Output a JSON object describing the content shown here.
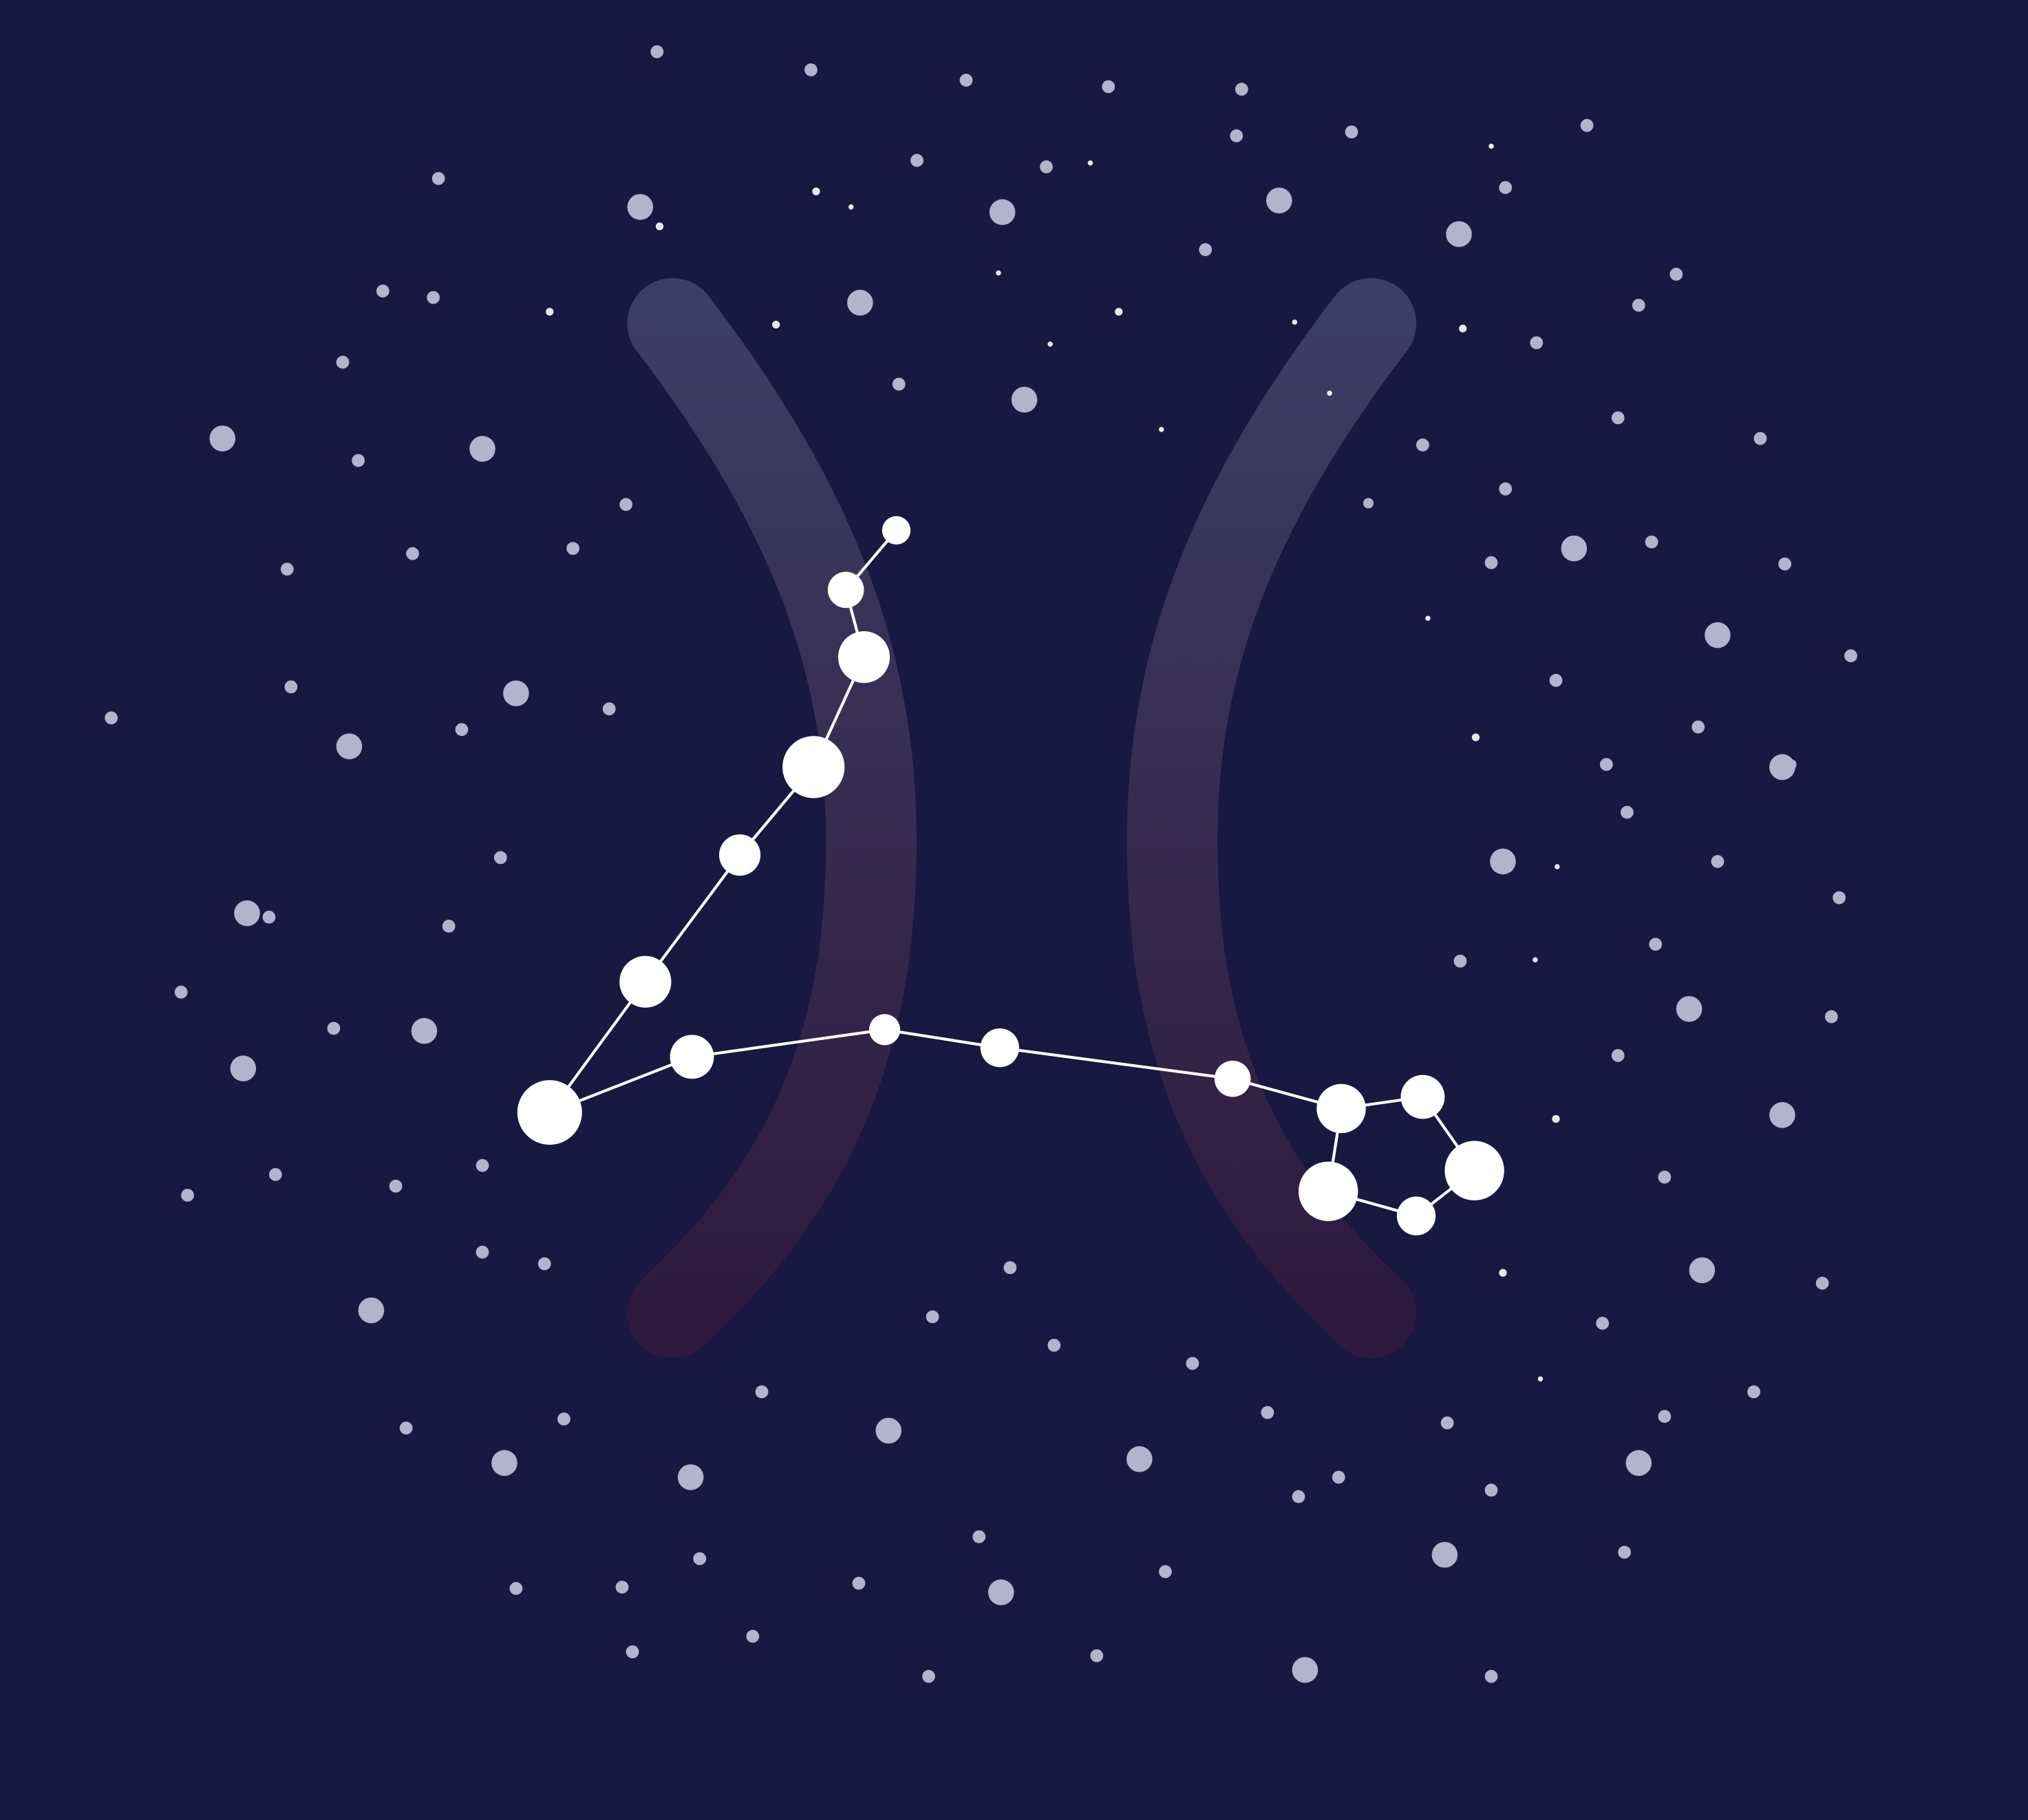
{
  "scene": {
    "subject": "pisces-constellation",
    "colors": {
      "background": "#191841",
      "star_bright": "#ffffff",
      "star_dim": "#b4b2cc",
      "constellation_line": "#ffffff",
      "glyph_top": "#3e3d63",
      "glyph_bottom": "#2e1a3e"
    },
    "icons": {
      "glyph": "pisces-glyph-icon",
      "stars": "star-icon"
    }
  }
}
